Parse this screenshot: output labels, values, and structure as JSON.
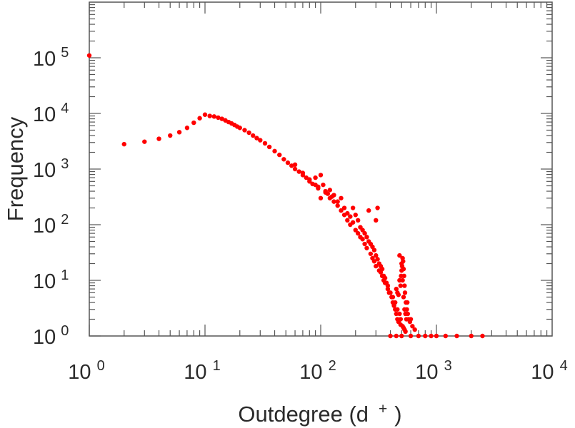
{
  "chart_data": {
    "type": "scatter",
    "title": "",
    "xlabel_main": "Outdegree (d",
    "xlabel_sup": "+",
    "xlabel_close": ")",
    "ylabel": "Frequency",
    "x_scale": "log",
    "y_scale": "log",
    "xlim": [
      1,
      10000
    ],
    "ylim": [
      1,
      1000000
    ],
    "grid": false,
    "legend": "none",
    "marker_color": "#ff0000",
    "x_ticks": [
      {
        "base": "10",
        "exp": "0"
      },
      {
        "base": "10",
        "exp": "1"
      },
      {
        "base": "10",
        "exp": "2"
      },
      {
        "base": "10",
        "exp": "3"
      },
      {
        "base": "10",
        "exp": "4"
      }
    ],
    "y_ticks": [
      {
        "base": "10",
        "exp": "0"
      },
      {
        "base": "10",
        "exp": "1"
      },
      {
        "base": "10",
        "exp": "2"
      },
      {
        "base": "10",
        "exp": "3"
      },
      {
        "base": "10",
        "exp": "4"
      },
      {
        "base": "10",
        "exp": "5"
      }
    ],
    "points": [
      [
        1,
        110000
      ],
      [
        2,
        2800
      ],
      [
        3,
        3100
      ],
      [
        4,
        3500
      ],
      [
        5,
        4000
      ],
      [
        6,
        4600
      ],
      [
        7,
        5500
      ],
      [
        8,
        6800
      ],
      [
        9,
        8200
      ],
      [
        10,
        9500
      ],
      [
        11,
        9000
      ],
      [
        12,
        8800
      ],
      [
        13,
        8400
      ],
      [
        14,
        8000
      ],
      [
        15,
        7500
      ],
      [
        16,
        7000
      ],
      [
        17,
        6600
      ],
      [
        18,
        6200
      ],
      [
        19,
        5800
      ],
      [
        20,
        5500
      ],
      [
        22,
        5000
      ],
      [
        24,
        4500
      ],
      [
        26,
        4000
      ],
      [
        28,
        3600
      ],
      [
        30,
        3300
      ],
      [
        33,
        2900
      ],
      [
        36,
        2500
      ],
      [
        40,
        2100
      ],
      [
        44,
        1800
      ],
      [
        48,
        1500
      ],
      [
        52,
        1300
      ],
      [
        56,
        1150
      ],
      [
        60,
        1000
      ],
      [
        65,
        900
      ],
      [
        70,
        780
      ],
      [
        75,
        700
      ],
      [
        80,
        600
      ],
      [
        85,
        540
      ],
      [
        90,
        700
      ],
      [
        95,
        450
      ],
      [
        100,
        780
      ],
      [
        100,
        300
      ],
      [
        105,
        520
      ],
      [
        110,
        400
      ],
      [
        115,
        360
      ],
      [
        120,
        300
      ],
      [
        125,
        320
      ],
      [
        130,
        260
      ],
      [
        140,
        220
      ],
      [
        150,
        180
      ],
      [
        160,
        150
      ],
      [
        170,
        120
      ],
      [
        180,
        100
      ],
      [
        190,
        200
      ],
      [
        200,
        150
      ],
      [
        200,
        80
      ],
      [
        210,
        70
      ],
      [
        220,
        60
      ],
      [
        230,
        55
      ],
      [
        240,
        45
      ],
      [
        250,
        38
      ],
      [
        260,
        180
      ],
      [
        270,
        30
      ],
      [
        280,
        25
      ],
      [
        290,
        22
      ],
      [
        300,
        120
      ],
      [
        300,
        18
      ],
      [
        310,
        200
      ],
      [
        320,
        15
      ],
      [
        330,
        14
      ],
      [
        340,
        12
      ],
      [
        350,
        10
      ],
      [
        360,
        9
      ],
      [
        380,
        8
      ],
      [
        400,
        6
      ],
      [
        420,
        5
      ],
      [
        440,
        4
      ],
      [
        460,
        3
      ],
      [
        480,
        28
      ],
      [
        480,
        2.5
      ],
      [
        490,
        2
      ],
      [
        500,
        20
      ],
      [
        500,
        15
      ],
      [
        510,
        10
      ],
      [
        520,
        5
      ],
      [
        530,
        3
      ],
      [
        540,
        2.5
      ],
      [
        550,
        2
      ],
      [
        560,
        4
      ],
      [
        600,
        2
      ],
      [
        400,
        1
      ],
      [
        450,
        1
      ],
      [
        500,
        1
      ],
      [
        600,
        1
      ],
      [
        700,
        1
      ],
      [
        800,
        1
      ],
      [
        900,
        1
      ],
      [
        1000,
        1
      ],
      [
        1200,
        1
      ],
      [
        1500,
        1
      ],
      [
        2000,
        1
      ],
      [
        2500,
        1
      ],
      [
        60,
        1200
      ],
      [
        70,
        850
      ],
      [
        80,
        650
      ],
      [
        90,
        520
      ],
      [
        95,
        480
      ],
      [
        110,
        380
      ],
      [
        120,
        420
      ],
      [
        130,
        340
      ],
      [
        140,
        260
      ],
      [
        150,
        300
      ],
      [
        160,
        200
      ],
      [
        170,
        160
      ],
      [
        180,
        140
      ],
      [
        190,
        110
      ],
      [
        210,
        120
      ],
      [
        220,
        90
      ],
      [
        230,
        80
      ],
      [
        240,
        70
      ],
      [
        250,
        60
      ],
      [
        260,
        50
      ],
      [
        270,
        45
      ],
      [
        280,
        40
      ],
      [
        290,
        35
      ],
      [
        300,
        28
      ],
      [
        310,
        24
      ],
      [
        320,
        20
      ],
      [
        330,
        18
      ],
      [
        340,
        16
      ],
      [
        350,
        12
      ],
      [
        360,
        11
      ],
      [
        370,
        9
      ],
      [
        380,
        7
      ],
      [
        390,
        6
      ],
      [
        410,
        5
      ],
      [
        420,
        4
      ],
      [
        430,
        3.5
      ],
      [
        440,
        3
      ],
      [
        450,
        2.5
      ],
      [
        460,
        2
      ],
      [
        470,
        1.8
      ],
      [
        490,
        1.6
      ],
      [
        510,
        1.5
      ],
      [
        520,
        1.4
      ],
      [
        530,
        1.3
      ],
      [
        540,
        1.2
      ],
      [
        450,
        7
      ],
      [
        460,
        6
      ],
      [
        470,
        5.5
      ],
      [
        480,
        10
      ],
      [
        490,
        8
      ],
      [
        495,
        12
      ],
      [
        505,
        18
      ],
      [
        510,
        25
      ],
      [
        515,
        22
      ],
      [
        520,
        16
      ],
      [
        525,
        12
      ],
      [
        530,
        8
      ],
      [
        535,
        6
      ],
      [
        545,
        4
      ],
      [
        555,
        3
      ],
      [
        565,
        2.5
      ],
      [
        575,
        2
      ],
      [
        590,
        1.8
      ],
      [
        620,
        1.5
      ],
      [
        650,
        1.3
      ]
    ]
  }
}
